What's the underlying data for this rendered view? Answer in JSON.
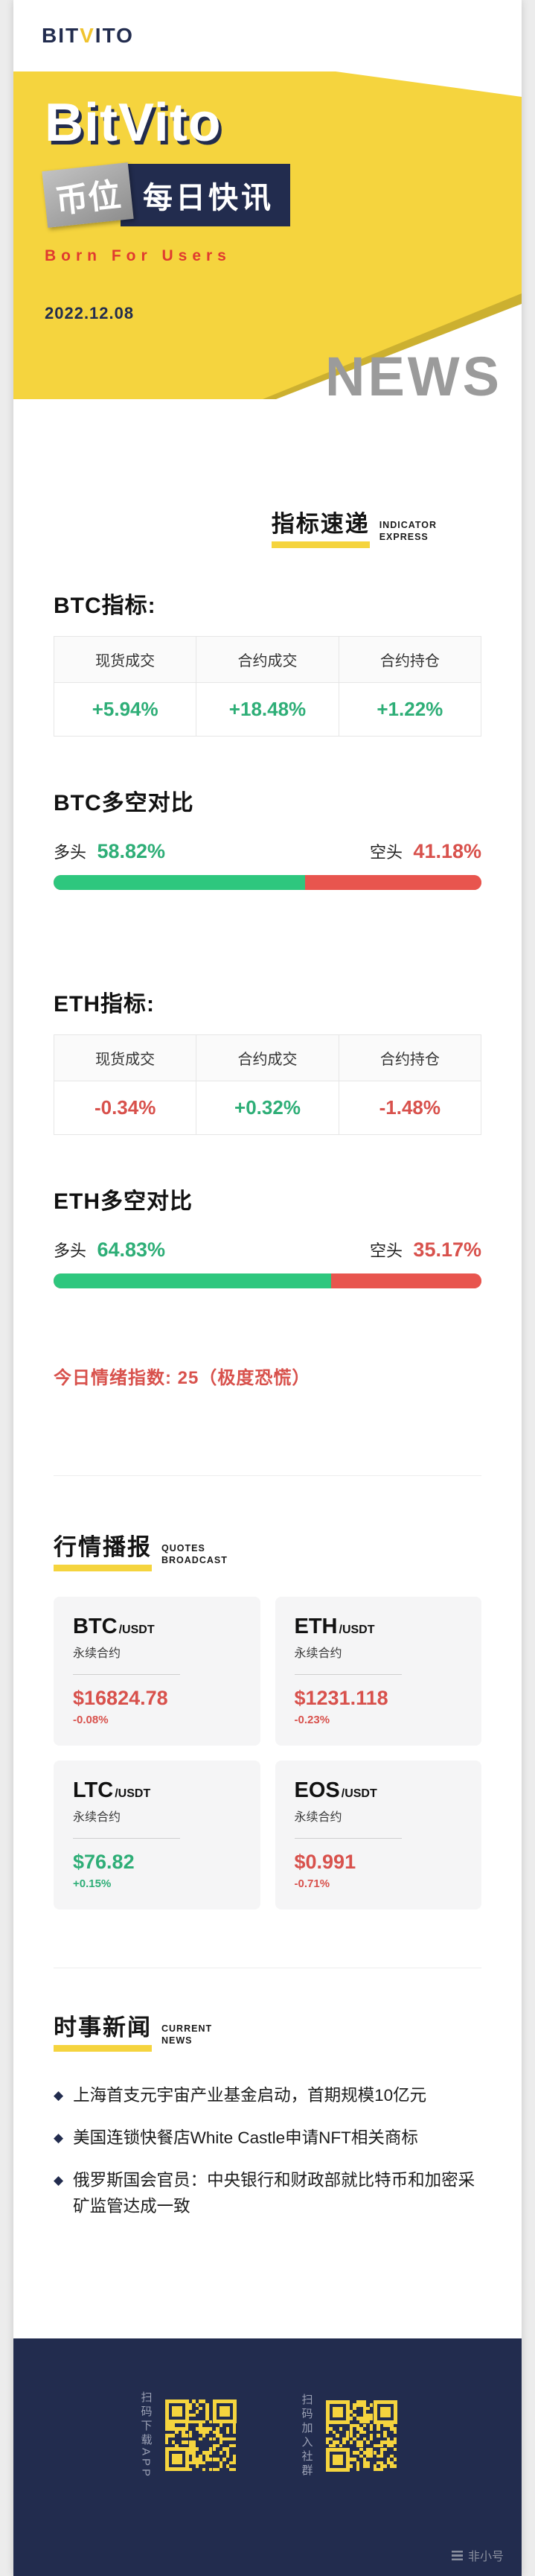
{
  "colors": {
    "yellow": "#F5D43E",
    "navy": "#222C4E",
    "red": "#D8514C",
    "green": "#2EAE77"
  },
  "topbar": {
    "logo_bit": "BIT",
    "logo_v": "V",
    "logo_ito": "ITO"
  },
  "hero": {
    "title": "BitVito",
    "stamp": "币位",
    "subtitle": "每日快讯",
    "slogan": "Born For Users",
    "date": "2022.12.08",
    "news_word": "NEWS"
  },
  "indicator": {
    "heading": "指标速递",
    "heading_en1": "INDICATOR",
    "heading_en2": "EXPRESS",
    "btc_title": "BTC指标:",
    "btc_table": {
      "headers": [
        "现货成交",
        "合约成交",
        "合约持仓"
      ],
      "values": [
        {
          "text": "+5.94%",
          "trend": "up"
        },
        {
          "text": "+18.48%",
          "trend": "up"
        },
        {
          "text": "+1.22%",
          "trend": "up"
        }
      ]
    },
    "btc_ratio": {
      "title": "BTC多空对比",
      "long_label": "多头",
      "long_value": "58.82%",
      "short_label": "空头",
      "short_value": "41.18%",
      "long_pct": 58.82
    },
    "eth_title": "ETH指标:",
    "eth_table": {
      "headers": [
        "现货成交",
        "合约成交",
        "合约持仓"
      ],
      "values": [
        {
          "text": "-0.34%",
          "trend": "down"
        },
        {
          "text": "+0.32%",
          "trend": "up"
        },
        {
          "text": "-1.48%",
          "trend": "down"
        }
      ]
    },
    "eth_ratio": {
      "title": "ETH多空对比",
      "long_label": "多头",
      "long_value": "64.83%",
      "short_label": "空头",
      "short_value": "35.17%",
      "long_pct": 64.83
    },
    "sentiment": "今日情绪指数: 25（极度恐慌）"
  },
  "quotes": {
    "heading": "行情播报",
    "heading_en1": "QUOTES",
    "heading_en2": "BROADCAST",
    "cards": [
      {
        "symbol": "BTC",
        "pair": "/USDT",
        "contract": "永续合约",
        "price": "$16824.78",
        "change": "-0.08%",
        "trend": "down"
      },
      {
        "symbol": "ETH",
        "pair": "/USDT",
        "contract": "永续合约",
        "price": "$1231.118",
        "change": "-0.23%",
        "trend": "down"
      },
      {
        "symbol": "LTC",
        "pair": "/USDT",
        "contract": "永续合约",
        "price": "$76.82",
        "change": "+0.15%",
        "trend": "up"
      },
      {
        "symbol": "EOS",
        "pair": "/USDT",
        "contract": "永续合约",
        "price": "$0.991",
        "change": "-0.71%",
        "trend": "down"
      }
    ]
  },
  "news": {
    "heading": "时事新闻",
    "heading_en1": "CURRENT",
    "heading_en2": "NEWS",
    "bullet": "◆",
    "items": [
      "上海首支元宇宙产业基金启动，首期规模10亿元",
      "美国连锁快餐店White Castle申请NFT相关商标",
      "俄罗斯国会官员：中央银行和财政部就比特币和加密采矿监管达成一致"
    ]
  },
  "footer": {
    "qr_download_label": "扫码下载APP",
    "qr_community_label": "扫码加入社群",
    "watermark": "非小号"
  }
}
